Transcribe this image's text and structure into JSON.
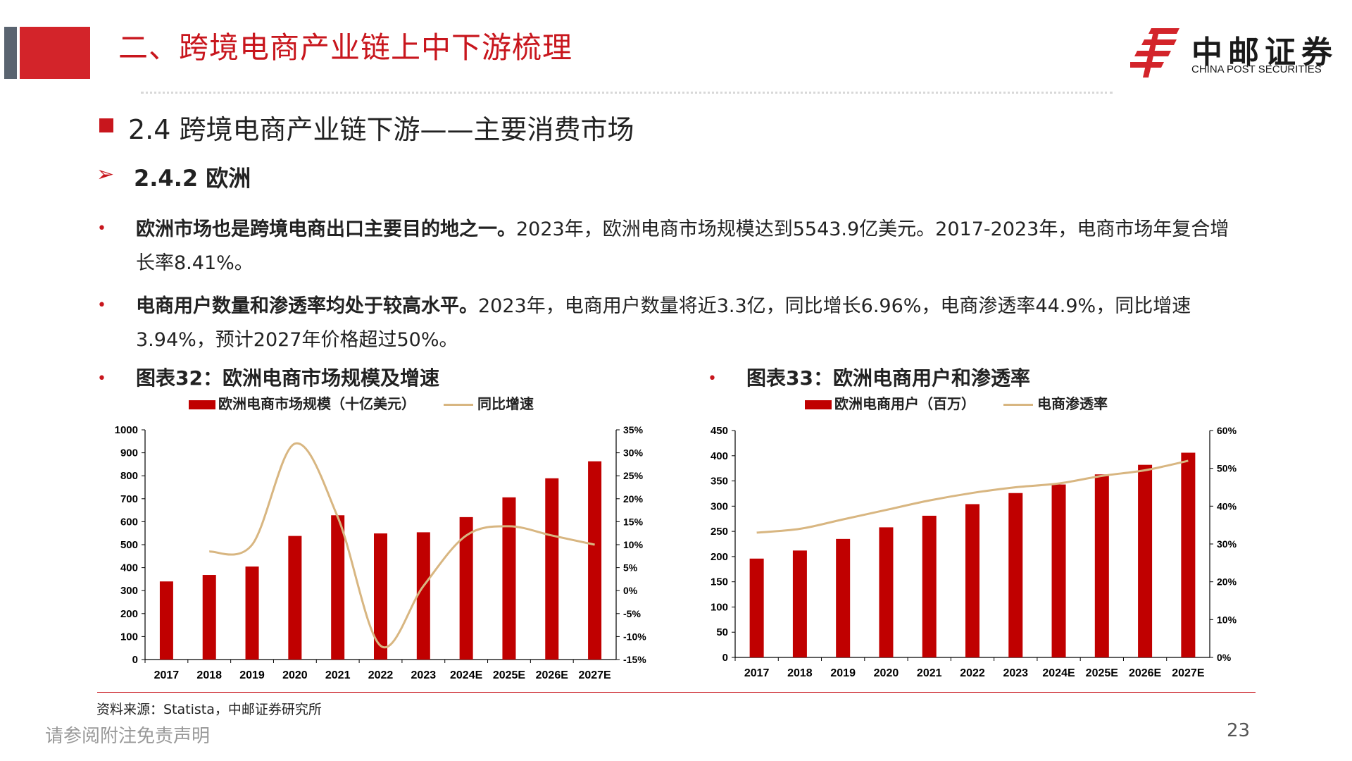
{
  "header": {
    "title": "二、跨境电商产业链上中下游梳理",
    "logo_cn": "中邮证券",
    "logo_en": "CHINA POST SECURITIES"
  },
  "section": {
    "title": "2.4 跨境电商产业链下游——主要消费市场",
    "subtitle": "2.4.2 欧洲"
  },
  "bullets": [
    {
      "bold": "欧洲市场也是跨境电商出口主要目的地之一。",
      "text": "2023年，欧洲电商市场规模达到5543.9亿美元。2017-2023年，电商市场年复合增长率8.41%。"
    },
    {
      "bold": "电商用户数量和渗透率均处于较高水平。",
      "text": "2023年，电商用户数量将近3.3亿，同比增长6.96%，电商渗透率44.9%，同比增速3.94%，预计2027年价格超过50%。"
    }
  ],
  "colors": {
    "accent": "#c8161d",
    "bar": "#c00000",
    "line": "#d8b681"
  },
  "chart_data": [
    {
      "type": "bar",
      "title": "图表32：欧洲电商市场规模及增速",
      "categories": [
        "2017",
        "2018",
        "2019",
        "2020",
        "2021",
        "2022",
        "2023",
        "2024E",
        "2025E",
        "2026E",
        "2027E"
      ],
      "series": [
        {
          "name": "欧洲电商市场规模（十亿美元）",
          "type": "bar",
          "axis": "left",
          "values": [
            340,
            368,
            405,
            538,
            628,
            549,
            554,
            620,
            706,
            789,
            863
          ]
        },
        {
          "name": "同比增速",
          "type": "line",
          "axis": "right",
          "values": [
            null,
            8.5,
            10,
            32,
            16,
            -12,
            1,
            12,
            14,
            12,
            10
          ]
        }
      ],
      "ylim": [
        0,
        1000
      ],
      "yticks": [
        "0",
        "100",
        "200",
        "300",
        "400",
        "500",
        "600",
        "700",
        "800",
        "900",
        "1000"
      ],
      "y2lim": [
        -15,
        35
      ],
      "y2ticks": [
        "-15%",
        "-10%",
        "-5%",
        "0%",
        "5%",
        "10%",
        "15%",
        "20%",
        "25%",
        "30%",
        "35%"
      ]
    },
    {
      "type": "bar",
      "title": "图表33：欧洲电商用户和渗透率",
      "categories": [
        "2017",
        "2018",
        "2019",
        "2020",
        "2021",
        "2022",
        "2023",
        "2024E",
        "2025E",
        "2026E",
        "2027E"
      ],
      "series": [
        {
          "name": "欧洲电商用户（百万）",
          "type": "bar",
          "axis": "left",
          "values": [
            196,
            212,
            235,
            258,
            281,
            304,
            326,
            343,
            363,
            382,
            406
          ]
        },
        {
          "name": "电商渗透率",
          "type": "line",
          "axis": "right",
          "values": [
            33,
            34,
            36.5,
            39,
            41.5,
            43.5,
            45,
            46,
            48,
            49.5,
            52
          ]
        }
      ],
      "ylim": [
        0,
        450
      ],
      "yticks": [
        "0",
        "50",
        "100",
        "150",
        "200",
        "250",
        "300",
        "350",
        "400",
        "450"
      ],
      "y2lim": [
        0,
        60
      ],
      "y2ticks": [
        "0%",
        "10%",
        "20%",
        "30%",
        "40%",
        "50%",
        "60%"
      ]
    }
  ],
  "footer": {
    "source": "资料来源：Statista，中邮证券研究所",
    "disclaimer": "请参阅附注免责声明",
    "page": "23"
  }
}
